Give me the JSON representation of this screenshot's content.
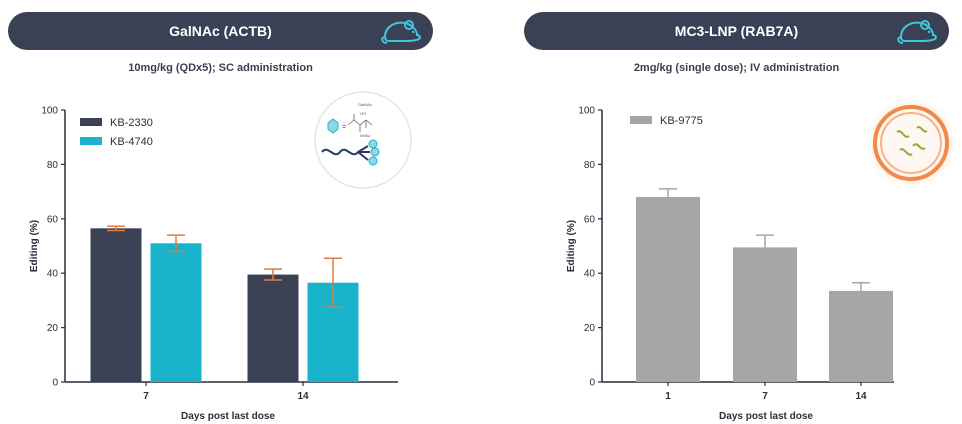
{
  "panels": [
    {
      "banner": "GalNAc (ACTB)",
      "subtitle": "10mg/kg (QDx5); SC administration",
      "icon": "mouse-icon",
      "graphic": "galnac-conjugate-illustration",
      "graphic_text": [
        "GalNAc",
        "OH",
        "NHAc"
      ]
    },
    {
      "banner": "MC3-LNP (RAB7A)",
      "subtitle": "2mg/kg (single dose); IV administration",
      "icon": "mouse-icon",
      "graphic": "lipid-nanoparticle-illustration"
    }
  ],
  "colors": {
    "banner": "#3a4155",
    "kb2330": "#3a4155",
    "kb4740": "#1ab3cc",
    "kb9775": "#a6a6a6",
    "error_bar_left": "#e07b39",
    "error_bar_right": "#a6a6a6",
    "lnp": "#f08a4b"
  },
  "chart_data": [
    {
      "type": "bar",
      "categories": [
        "7",
        "14"
      ],
      "series": [
        {
          "name": "KB-2330",
          "values": [
            56.5,
            39.5
          ],
          "errors": [
            0.8,
            2
          ]
        },
        {
          "name": "KB-4740",
          "values": [
            51,
            36.5
          ],
          "errors": [
            3,
            9
          ]
        }
      ],
      "xlabel": "Days post last dose",
      "ylabel": "Editing (%)",
      "ylim": [
        0,
        100
      ],
      "yticks": [
        0,
        20,
        40,
        60,
        80,
        100
      ],
      "legend": "top-left"
    },
    {
      "type": "bar",
      "categories": [
        "1",
        "7",
        "14"
      ],
      "series": [
        {
          "name": "KB-9775",
          "values": [
            68,
            49.5,
            33.5
          ],
          "errors": [
            3,
            4.5,
            3
          ]
        }
      ],
      "xlabel": "Days post last dose",
      "ylabel": "Editing (%)",
      "ylim": [
        0,
        100
      ],
      "yticks": [
        0,
        20,
        40,
        60,
        80,
        100
      ],
      "legend": "top-left"
    }
  ]
}
